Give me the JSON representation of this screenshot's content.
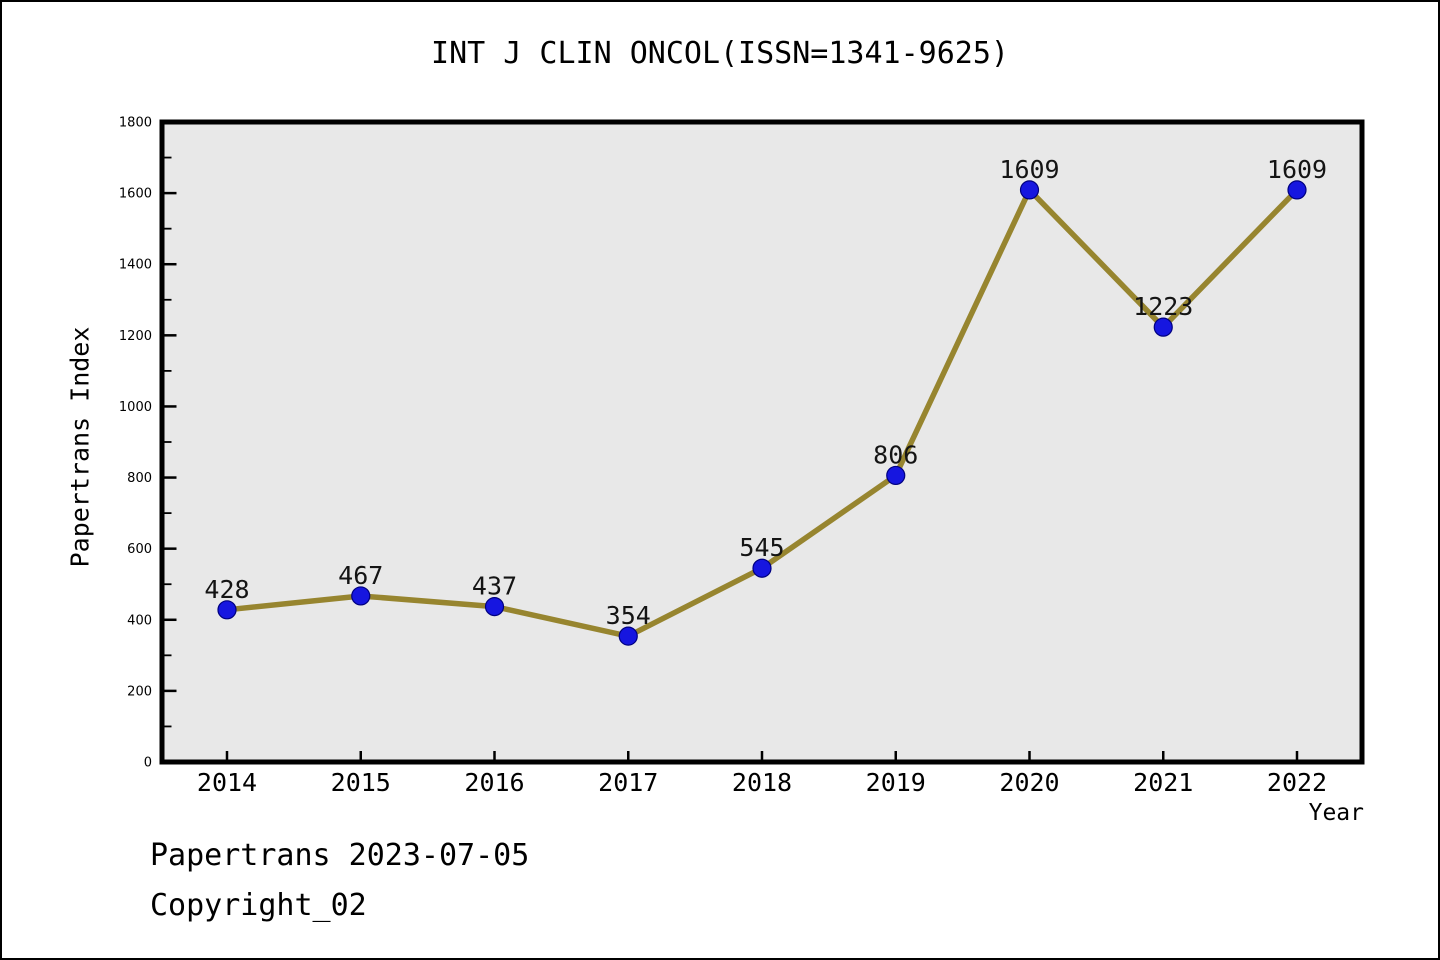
{
  "chart": {
    "title": "INT J CLIN ONCOL(ISSN=1341-9625)",
    "xlabel": "Year",
    "ylabel": "Papertrans Index"
  },
  "footer": {
    "line1": "Papertrans 2023-07-05",
    "line2": "Copyright_02"
  },
  "chart_data": {
    "type": "line",
    "title": "INT J CLIN ONCOL(ISSN=1341-9625)",
    "xlabel": "Year",
    "ylabel": "Papertrans Index",
    "categories": [
      2014,
      2015,
      2016,
      2017,
      2018,
      2019,
      2020,
      2021,
      2022
    ],
    "values": [
      428,
      467,
      437,
      354,
      545,
      806,
      1609,
      1223,
      1609
    ],
    "ylim": [
      0,
      1800
    ],
    "ytick_step": 200,
    "ytick_minor_step": 100,
    "grid": false,
    "legend_position": "none",
    "point_labels_visible": true,
    "colors": {
      "line": "#97852F",
      "marker": "#1616E0",
      "marker_edge": "#000080",
      "plot_bg": "#E8E8E8",
      "axis": "#000000",
      "text": "#000000",
      "point_label": "#141414"
    }
  }
}
